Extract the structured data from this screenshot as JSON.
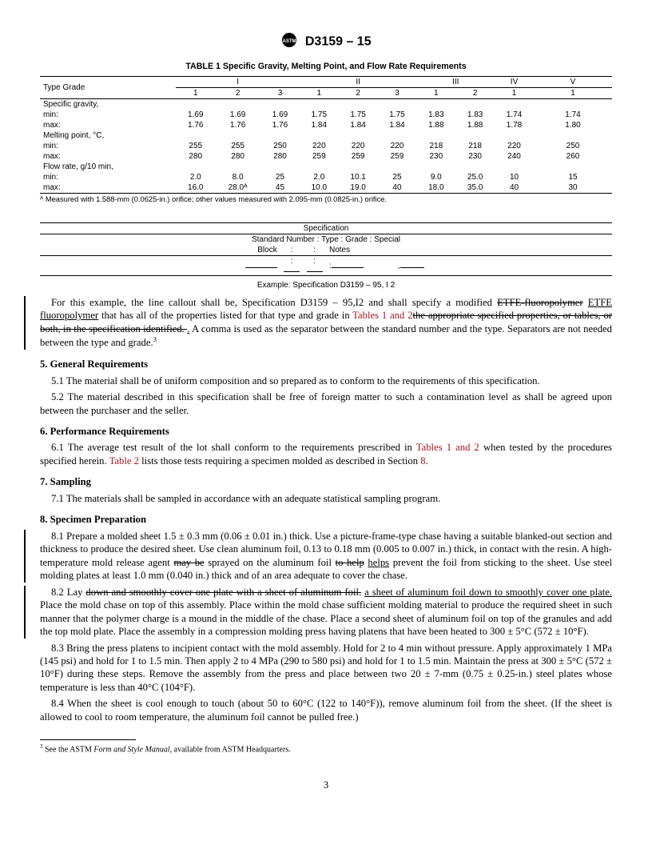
{
  "doc": {
    "designation": "D3159 – 15",
    "page_number": "3"
  },
  "table1": {
    "title": "TABLE 1 Specific Gravity, Melting Point, and Flow Rate Requirements",
    "type_grade_label": "Type Grade",
    "types": [
      "I",
      "II",
      "III",
      "IV",
      "V"
    ],
    "grades": [
      "1",
      "2",
      "3",
      "1",
      "2",
      "3",
      "1",
      "2",
      "1",
      "1"
    ],
    "rows": [
      {
        "label": "Specific gravity,"
      },
      {
        "label": "min:",
        "vals": [
          "1.69",
          "1.69",
          "1.69",
          "1.75",
          "1.75",
          "1.75",
          "1.83",
          "1.83",
          "1.74",
          "1.74"
        ]
      },
      {
        "label": "max:",
        "vals": [
          "1.76",
          "1.76",
          "1.76",
          "1.84",
          "1.84",
          "1.84",
          "1.88",
          "1.88",
          "1.78",
          "1.80"
        ]
      },
      {
        "label": "Melting point, °C,"
      },
      {
        "label": "min:",
        "vals": [
          "255",
          "255",
          "250",
          "220",
          "220",
          "220",
          "218",
          "218",
          "220",
          "250"
        ]
      },
      {
        "label": "max:",
        "vals": [
          "280",
          "280",
          "280",
          "259",
          "259",
          "259",
          "230",
          "230",
          "240",
          "260"
        ]
      },
      {
        "label": "Flow rate, g/10 min,"
      },
      {
        "label": "min:",
        "vals": [
          "2.0",
          "8.0",
          "25",
          "2.0",
          "10.1",
          "25",
          "9.0",
          "25.0",
          "10",
          "15"
        ]
      },
      {
        "label": "max:",
        "vals": [
          "16.0",
          "28.0ᴬ",
          "45",
          "10.0",
          "19.0",
          "40",
          "18.0",
          "35.0",
          "40",
          "30"
        ]
      }
    ],
    "footnote_a": "ᴬ Measured with 1.588-mm (0.0625-in.) orifice; other values measured with 2.095-mm (0.0825-in.) orifice."
  },
  "spec_line": {
    "header": "Specification",
    "row": "Standard Number : Type : Grade : Special",
    "row2_label": "Block",
    "row2_right": "Notes",
    "colons": [
      ":",
      ":",
      ":",
      ","
    ],
    "example": "Example: Specification D3159 – 95,   I      2"
  },
  "para1": {
    "text_a": "For this example, the line callout shall be, Specification D3159 – 95,I2 and shall specify a modified ",
    "strike1": "ETFE-fluoropolymer",
    "ins1": "ETFE fluoropolymer",
    "text_b": " that has all of the properties listed for that type and grade in ",
    "xref1": "Tables 1 and 2",
    "strike2": "the appropriate specified properties, or tables, or both, in the specification identified. ",
    "text_c": " A comma is used as the separator between the standard number and the type. Separators are not needed between the type and grade.",
    "sup": "3"
  },
  "sections": {
    "s5": "5. General Requirements",
    "s5_1": "5.1 The material shall be of uniform composition and so prepared as to conform to the requirements of this specification.",
    "s5_2": "5.2 The material described in this specification shall be free of foreign matter to such a contamination level as shall be agreed upon between the purchaser and the seller.",
    "s6": "6. Performance Requirements",
    "s6_1a": "6.1 The average test result of the lot shall conform to the requirements prescribed in ",
    "s6_1_x1": "Tables 1 and 2",
    "s6_1b": " when tested by the procedures specified herein. ",
    "s6_1_x2": "Table 2",
    "s6_1c": " lists those tests requiring a specimen molded as described in Section ",
    "s6_1_x3": "8",
    "s6_1d": ".",
    "s7": "7. Sampling",
    "s7_1": "7.1 The materials shall be sampled in accordance with an adequate statistical sampling program.",
    "s8": "8. Specimen Preparation",
    "s8_1a": "8.1 Prepare a molded sheet 1.5 ± 0.3 mm (0.06 ± 0.01 in.) thick. Use a picture-frame-type chase having a suitable blanked-out section and thickness to produce the desired sheet. Use clean aluminum foil, 0.13 to 0.18 mm (0.005 to 0.007 in.) thick, in contact with the resin. A high-temperature mold release agent ",
    "s8_1_strike1": "may be",
    "s8_1b": " sprayed on the aluminum foil ",
    "s8_1_strike2": "to help",
    "s8_1_ins": "helps",
    "s8_1c": " prevent the foil from sticking to the sheet. Use steel molding plates at least 1.0 mm (0.040 in.) thick and of an area adequate to cover the chase.",
    "s8_2a": "8.2 Lay ",
    "s8_2_strike": "down and smoothly cover one plate with a sheet of aluminum foil.",
    "s8_2_ins": "a sheet of aluminum foil down to smoothly cover one plate.",
    "s8_2b": " Place the mold chase on top of this assembly. Place within the mold chase sufficient molding material to produce the required sheet in such manner that the polymer charge is a mound in the middle of the chase. Place a second sheet of aluminum foil on top of the granules and add the top mold plate. Place the assembly in a compression molding press having platens that have been heated to 300 ± 5°C (572 ± 10°F).",
    "s8_3": "8.3 Bring the press platens to incipient contact with the mold assembly. Hold for 2 to 4 min without pressure. Apply approximately 1 MPa (145 psi) and hold for 1 to 1.5 min. Then apply 2 to 4 MPa (290 to 580 psi) and hold for 1 to 1.5 min. Maintain the press at 300 ± 5°C (572 ± 10°F) during these steps. Remove the assembly from the press and place between two 20 ± 7-mm (0.75 ± 0.25-in.) steel plates whose temperature is less than 40°C (104°F).",
    "s8_4": "8.4 When the sheet is cool enough to touch (about 50 to 60°C (122 to 140°F)), remove aluminum foil from the sheet. (If the sheet is allowed to cool to room temperature, the aluminum foil cannot be pulled free.)"
  },
  "footnote3": "³ See the ASTM Form and Style Manual, available from ASTM Headquarters.",
  "footnote3_a": "See the ASTM ",
  "footnote3_i": "Form and Style Manual",
  "footnote3_b": ", available from ASTM Headquarters."
}
